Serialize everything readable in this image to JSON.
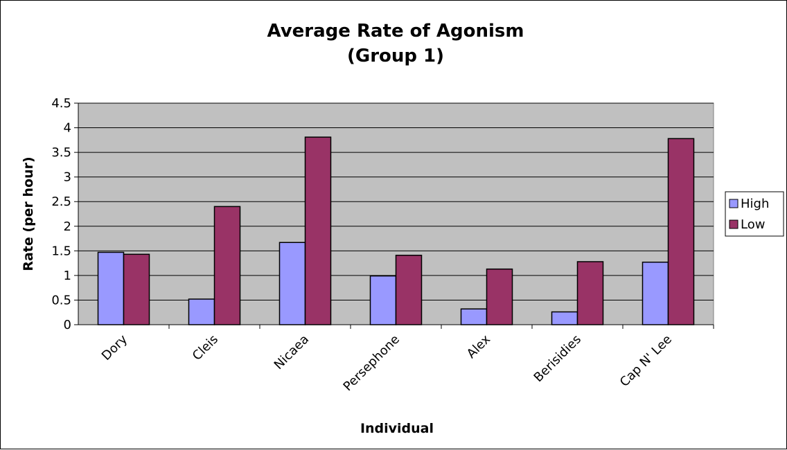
{
  "chart_data": {
    "type": "bar",
    "title_lines": [
      "Average Rate of Agonism",
      "(Group 1)"
    ],
    "xlabel": "Individual",
    "ylabel": "Rate (per hour)",
    "ylim": [
      0,
      4.5
    ],
    "ytick_step": 0.5,
    "yticks": [
      "0",
      "0.5",
      "1",
      "1.5",
      "2",
      "2.5",
      "3",
      "3.5",
      "4",
      "4.5"
    ],
    "grid": true,
    "legend_position": "right",
    "plot_background": "#C0C0C0",
    "categories": [
      "Dory",
      "Cleis",
      "Nicaea",
      "Persephone",
      "Alex",
      "Berisidies",
      "Cap N' Lee"
    ],
    "series": [
      {
        "name": "High",
        "color": "#9999FF",
        "values": [
          1.47,
          0.52,
          1.67,
          0.99,
          0.32,
          0.26,
          1.27
        ]
      },
      {
        "name": "Low",
        "color": "#993366",
        "values": [
          1.43,
          2.4,
          3.81,
          1.41,
          1.13,
          1.28,
          3.78
        ]
      }
    ]
  }
}
